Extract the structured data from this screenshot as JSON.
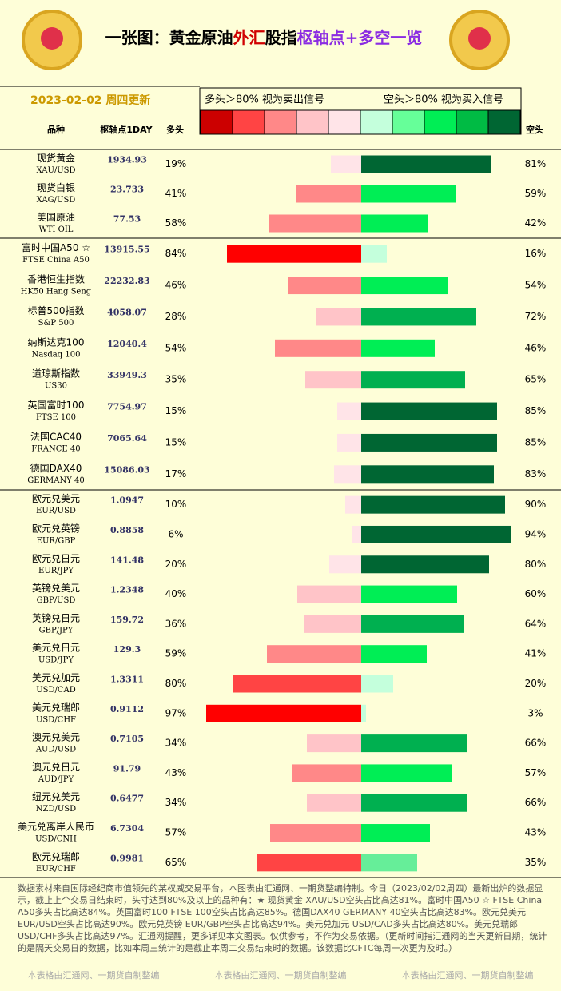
{
  "header": {
    "title_parts": [
      "一张图：黄金原油",
      "外汇",
      "股指",
      "枢轴点",
      "+多空一览"
    ],
    "date": "2023-02-02",
    "update": "周四更新"
  },
  "legend": {
    "long_text": "多头＞80%  视为卖出信号",
    "short_text": "空头＞80%  视为买入信号",
    "colors": [
      "#cc0000",
      "#ff4444",
      "#ff8888",
      "#ffc4c8",
      "#ffe4e8",
      "#c4ffdc",
      "#66ff99",
      "#00ee55",
      "#00bb44",
      "#006633"
    ]
  },
  "columns": {
    "name": "品种",
    "pivot": "枢轴点1DAY",
    "long": "多头",
    "short": "空头"
  },
  "long_colors": [
    "#ff0000",
    "#ff4444",
    "#ff8888",
    "#ffc4c8",
    "#ffe4e8"
  ],
  "short_colors": [
    "#c4ffdc",
    "#66ee99",
    "#00ee55",
    "#00b050",
    "#006633"
  ],
  "groups": [
    {
      "rows": [
        {
          "name": "现货黄金",
          "code": "XAU/USD",
          "pivot": 1934.93,
          "long": 19,
          "long_label": "19%",
          "short": 81,
          "short_label": "81%"
        },
        {
          "name": "现货白银",
          "code": "XAG/USD",
          "pivot": 23.733,
          "long": 41,
          "long_label": "41%",
          "short": 59,
          "short_label": "59%"
        },
        {
          "name": "美国原油",
          "code": "WTI OIL",
          "pivot": 77.53,
          "long": 58,
          "long_label": "58%",
          "short": 42,
          "short_label": "42%"
        }
      ]
    },
    {
      "rows": [
        {
          "name": "富时中国A50 ☆",
          "code": "FTSE China A50",
          "pivot": 13915.55,
          "long": 84,
          "long_label": "84%",
          "short": 16,
          "short_label": "16%"
        },
        {
          "name": "香港恒生指数",
          "code": "HK50 Hang Seng",
          "pivot": 22232.83,
          "long": 46,
          "long_label": "46%",
          "short": 54,
          "short_label": "54%"
        },
        {
          "name": "标普500指数",
          "code": "S&P 500",
          "pivot": 4058.07,
          "long": 28,
          "long_label": "28%",
          "short": 72,
          "short_label": "72%"
        },
        {
          "name": "纳斯达克100",
          "code": "Nasdaq 100",
          "pivot": 12040.4,
          "long": 54,
          "long_label": "54%",
          "short": 46,
          "short_label": "46%"
        },
        {
          "name": "道琼斯指数",
          "code": "US30",
          "pivot": 33949.3,
          "long": 35,
          "long_label": "35%",
          "short": 65,
          "short_label": "65%"
        },
        {
          "name": "英国富时100",
          "code": "FTSE 100",
          "pivot": 7754.97,
          "long": 15,
          "long_label": "15%",
          "short": 85,
          "short_label": "85%"
        },
        {
          "name": "法国CAC40",
          "code": "FRANCE 40",
          "pivot": 7065.64,
          "long": 15,
          "long_label": "15%",
          "short": 85,
          "short_label": "85%"
        },
        {
          "name": "德国DAX40",
          "code": "GERMANY 40",
          "pivot": 15086.03,
          "long": 17,
          "long_label": "17%",
          "short": 83,
          "short_label": "83%"
        }
      ]
    },
    {
      "rows": [
        {
          "name": "欧元兑美元",
          "code": "EUR/USD",
          "pivot": 1.0947,
          "long": 10,
          "long_label": "10%",
          "short": 90,
          "short_label": "90%"
        },
        {
          "name": "欧元兑英镑",
          "code": "EUR/GBP",
          "pivot": 0.8858,
          "long": 6,
          "long_label": "6%",
          "short": 94,
          "short_label": "94%"
        },
        {
          "name": "欧元兑日元",
          "code": "EUR/JPY",
          "pivot": 141.48,
          "long": 20,
          "long_label": "20%",
          "short": 80,
          "short_label": "80%"
        },
        {
          "name": "英镑兑美元",
          "code": "GBP/USD",
          "pivot": 1.2348,
          "long": 40,
          "long_label": "40%",
          "short": 60,
          "short_label": "60%"
        },
        {
          "name": "英镑兑日元",
          "code": "GBP/JPY",
          "pivot": 159.72,
          "long": 36,
          "long_label": "36%",
          "short": 64,
          "short_label": "64%"
        },
        {
          "name": "美元兑日元",
          "code": "USD/JPY",
          "pivot": 129.3,
          "long": 59,
          "long_label": "59%",
          "short": 41,
          "short_label": "41%"
        },
        {
          "name": "美元兑加元",
          "code": "USD/CAD",
          "pivot": 1.3311,
          "long": 80,
          "long_label": "80%",
          "short": 20,
          "short_label": "20%"
        },
        {
          "name": "美元兑瑞郎",
          "code": "USD/CHF",
          "pivot": 0.9112,
          "long": 97,
          "long_label": "97%",
          "short": 3,
          "short_label": "3%"
        },
        {
          "name": "澳元兑美元",
          "code": "AUD/USD",
          "pivot": 0.7105,
          "long": 34,
          "long_label": "34%",
          "short": 66,
          "short_label": "66%"
        },
        {
          "name": "澳元兑日元",
          "code": "AUD/JPY",
          "pivot": 91.79,
          "long": 43,
          "long_label": "43%",
          "short": 57,
          "short_label": "57%"
        },
        {
          "name": "纽元兑美元",
          "code": "NZD/USD",
          "pivot": 0.6477,
          "long": 34,
          "long_label": "34%",
          "short": 66,
          "short_label": "66%"
        },
        {
          "name": "美元兑离岸人民币",
          "code": "USD/CNH",
          "pivot": 6.7304,
          "long": 57,
          "long_label": "57%",
          "short": 43,
          "short_label": "43%"
        },
        {
          "name": "欧元兑瑞郎",
          "code": "EUR/CHF",
          "pivot": 0.9981,
          "long": 65,
          "long_label": "65%",
          "short": 35,
          "short_label": "35%"
        }
      ]
    }
  ],
  "footer": {
    "text": "数据素材来自国际经纪商市值领先的某权威交易平台，本图表由汇通网、一期货整编特制。今日（2023/02/02周四）最新出炉的数据显示，截止上个交易日结束时，头寸达到80%及以上的品种有：★ 现货黄金 XAU/USD空头占比高达81%。富时中国A50 ☆ FTSE China A50多头占比高达84%。英国富时100  FTSE 100空头占比高达85%。德国DAX40  GERMANY 40空头占比高达83%。欧元兑美元 EUR/USD空头占比高达90%。欧元兑英镑 EUR/GBP空头占比高达94%。美元兑加元 USD/CAD多头占比高达80%。美元兑瑞郎 USD/CHF多头占比高达97%。汇通网提醒，更多详见本文图表。仅供参考，不作为交易依据。（更新时间指汇通网的当天更新日期，统计的是隔天交易日的数据，比如本周三统计的是截止本周二交易结束时的数据。该数据比CFTC每周一次更为及时。）",
    "watermarks": [
      "本表格由汇通网、一期货自制整编",
      "本表格由汇通网、一期货自制整编",
      "本表格由汇通网、一期货自制整编"
    ]
  }
}
